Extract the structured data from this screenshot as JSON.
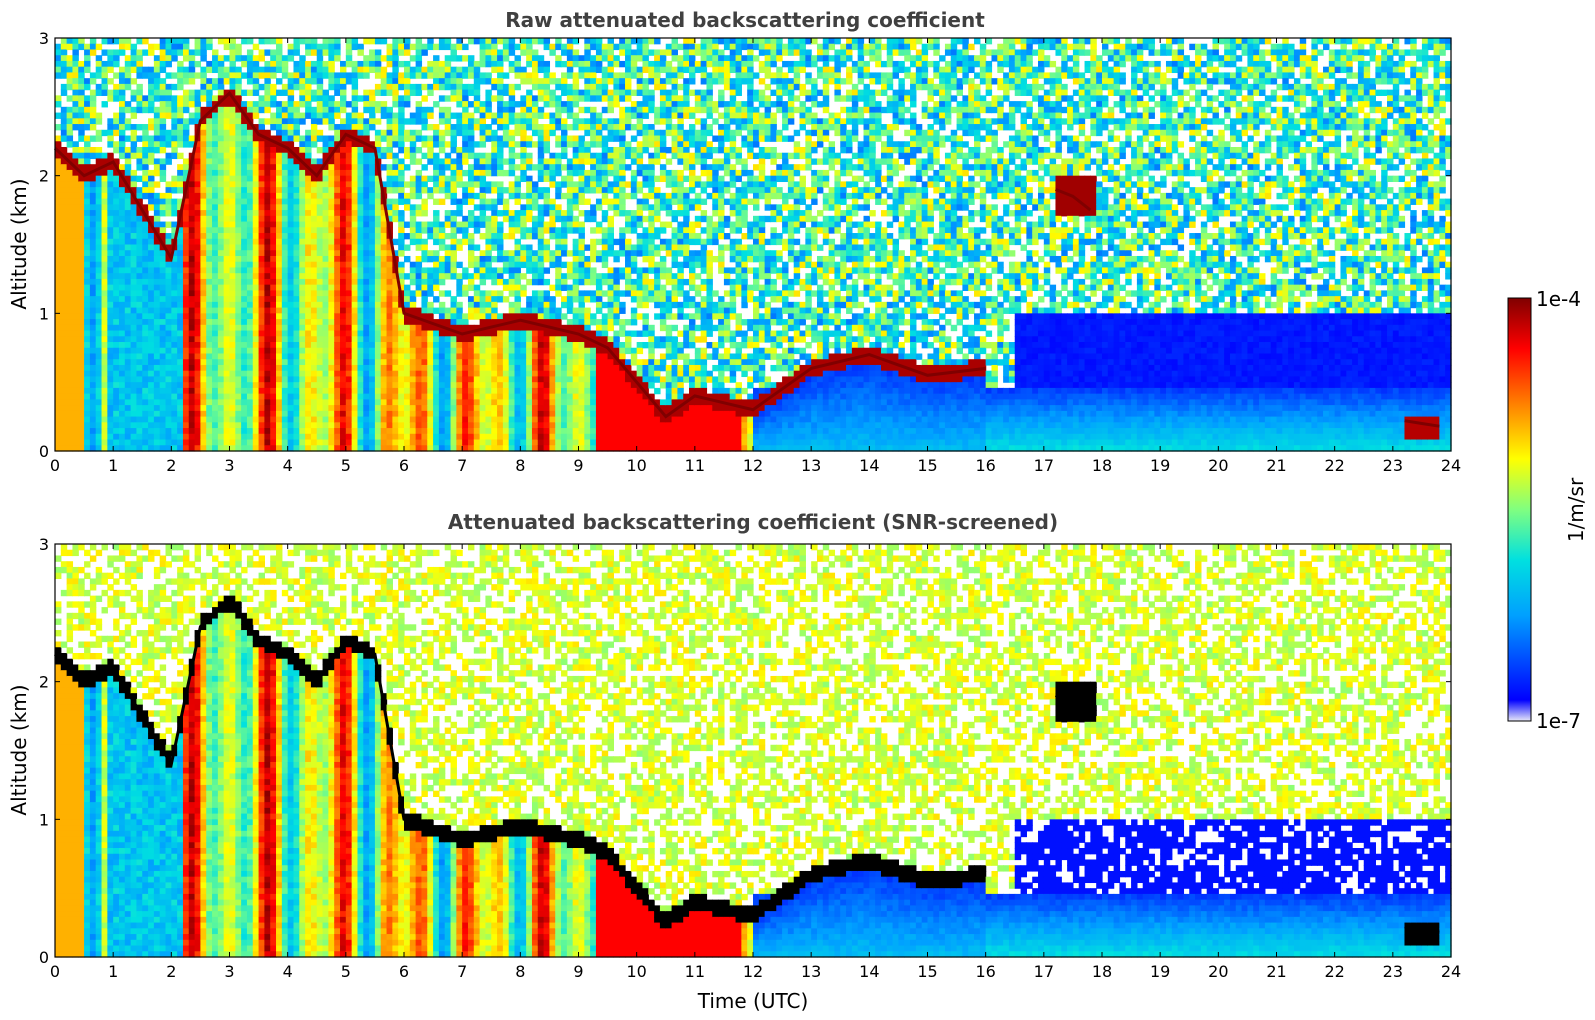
{
  "chart_data": [
    {
      "type": "heatmap",
      "title": "Raw attenuated backscattering coefficient",
      "xlabel": "",
      "ylabel": "Altitude (km)",
      "xlim": [
        0,
        24
      ],
      "ylim": [
        0,
        3
      ],
      "x_ticks": [
        "0",
        "1",
        "2",
        "3",
        "4",
        "5",
        "6",
        "7",
        "8",
        "9",
        "10",
        "11",
        "12",
        "13",
        "14",
        "15",
        "16",
        "17",
        "18",
        "19",
        "20",
        "21",
        "22",
        "23",
        "24"
      ],
      "y_ticks": [
        "0",
        "1",
        "2",
        "3"
      ],
      "layers": [
        {
          "name": "cloud/aerosol top",
          "x": [
            0,
            0.5,
            1,
            2,
            2.5,
            3,
            3.5,
            4,
            4.5,
            5,
            5.5,
            6,
            7,
            8,
            9,
            9.5,
            10,
            10.5,
            11,
            11.5,
            12,
            13,
            14,
            15,
            16
          ],
          "y": [
            2.2,
            2.0,
            2.1,
            1.4,
            2.4,
            2.6,
            2.3,
            2.2,
            2.0,
            2.3,
            2.2,
            1.0,
            0.85,
            0.95,
            0.85,
            0.75,
            0.5,
            0.25,
            0.4,
            0.35,
            0.3,
            0.6,
            0.7,
            0.55,
            0.6
          ]
        },
        {
          "name": "elevated layer near 17.5 UTC",
          "x": [
            17.2,
            17.5,
            17.8
          ],
          "y": [
            1.9,
            1.85,
            1.75
          ]
        },
        {
          "name": "low layer near 23.5 UTC",
          "x": [
            23.2,
            23.5,
            23.8
          ],
          "y": [
            0.22,
            0.2,
            0.18
          ]
        }
      ]
    },
    {
      "type": "heatmap",
      "title": "Attenuated backscattering coefficient (SNR-screened)",
      "xlabel": "Time (UTC)",
      "ylabel": "Altitude (km)",
      "xlim": [
        0,
        24
      ],
      "ylim": [
        0,
        3
      ],
      "x_ticks": [
        "0",
        "1",
        "2",
        "3",
        "4",
        "5",
        "6",
        "7",
        "8",
        "9",
        "10",
        "11",
        "12",
        "13",
        "14",
        "15",
        "16",
        "17",
        "18",
        "19",
        "20",
        "21",
        "22",
        "23",
        "24"
      ],
      "y_ticks": [
        "0",
        "1",
        "2",
        "3"
      ]
    }
  ],
  "colorbar": {
    "max_label": "1e-4",
    "min_label": "1e-7",
    "unit": "1/m/sr",
    "scale": "log",
    "range": [
      1e-07,
      0.0001
    ],
    "colors": [
      "#e8e8f8",
      "#0000ff",
      "#00a0ff",
      "#00e0e0",
      "#80ff80",
      "#ffff00",
      "#ff8000",
      "#ff0000",
      "#800000"
    ]
  }
}
